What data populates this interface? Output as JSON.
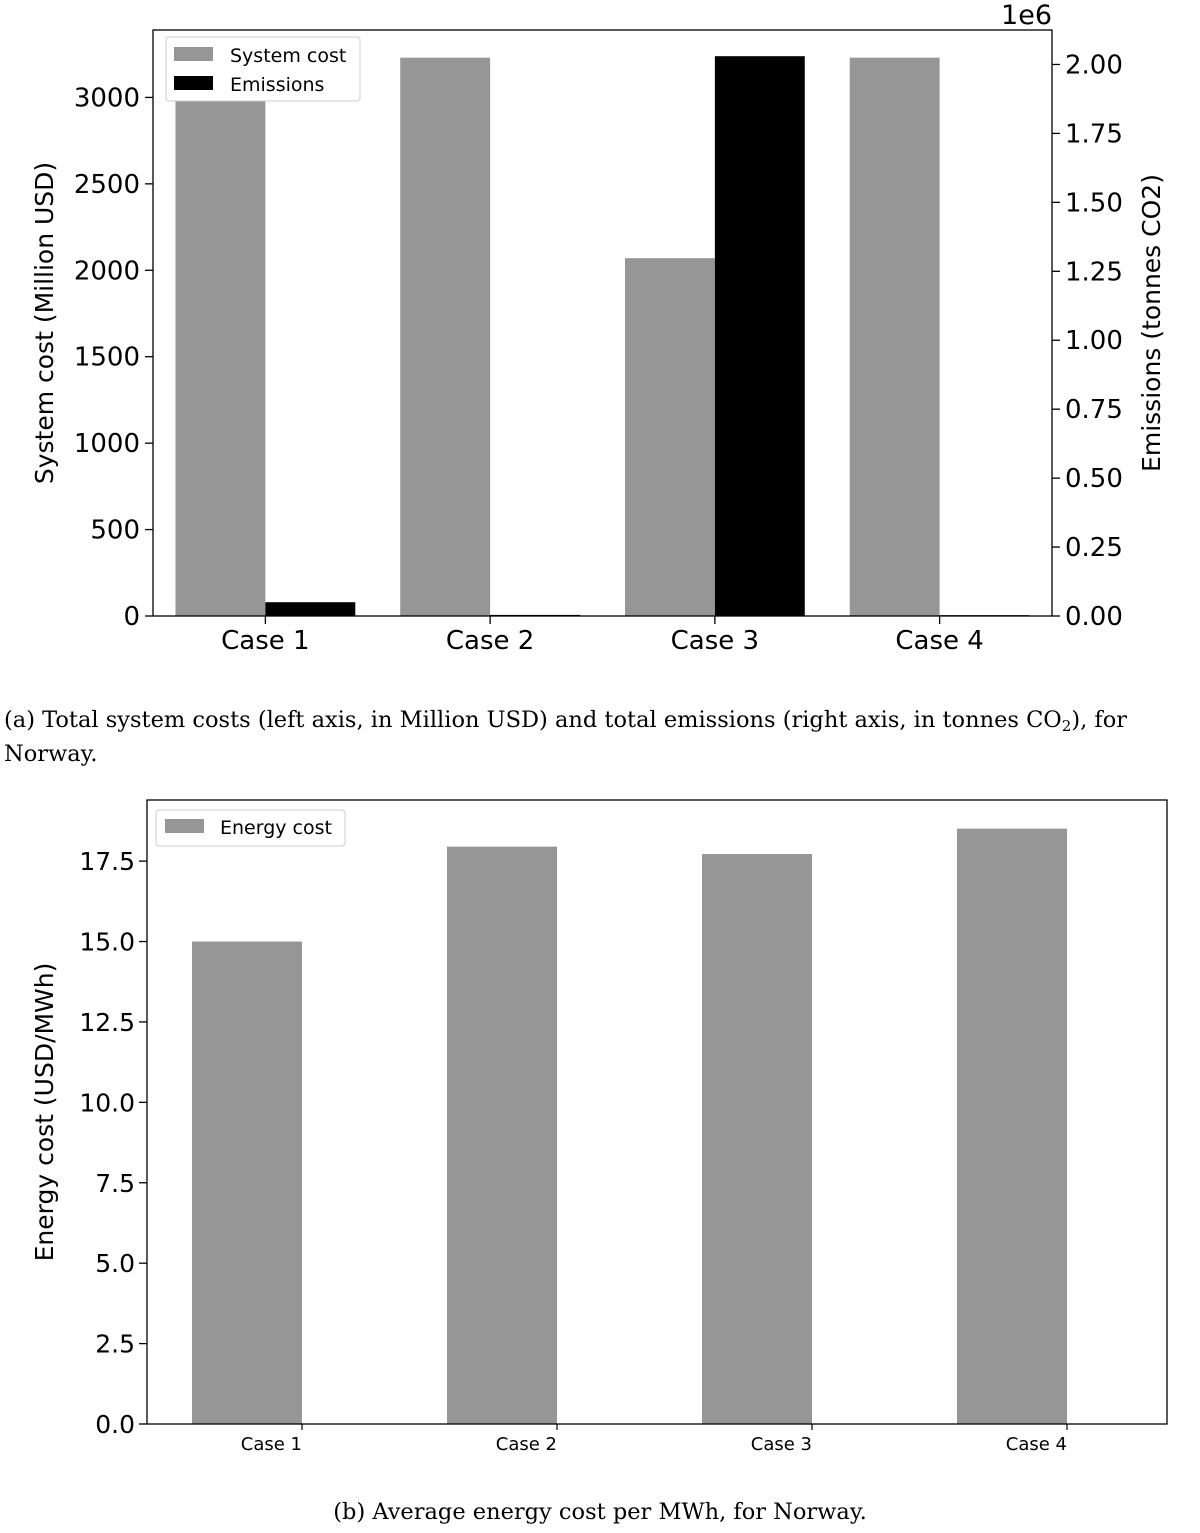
{
  "chart_data": [
    {
      "id": "a",
      "type": "bar",
      "categories": [
        "Case 1",
        "Case 2",
        "Case 3",
        "Case 4"
      ],
      "series": [
        {
          "name": "System cost",
          "axis": "left",
          "color": "#969696",
          "values": [
            3020,
            3230,
            2070,
            3230
          ]
        },
        {
          "name": "Emissions",
          "axis": "right",
          "color": "#000000",
          "values": [
            50000,
            4000,
            2030000,
            3000
          ]
        }
      ],
      "ylabel_left": "System cost (Million USD)",
      "ylabel_right": "Emissions (tonnes CO2)",
      "ylim_left": [
        0,
        3390
      ],
      "ylim_right": [
        0,
        2125000
      ],
      "yticks_left": [
        0,
        500,
        1000,
        1500,
        2000,
        2500,
        3000
      ],
      "yticks_left_labels": [
        "0",
        "500",
        "1000",
        "1500",
        "2000",
        "2500",
        "3000"
      ],
      "yticks_right": [
        0,
        250000,
        500000,
        750000,
        1000000,
        1250000,
        1500000,
        1750000,
        2000000
      ],
      "yticks_right_labels": [
        "0.00",
        "0.25",
        "0.50",
        "0.75",
        "1.00",
        "1.25",
        "1.50",
        "1.75",
        "2.00"
      ],
      "right_offset_label": "1e6",
      "legend": [
        "System cost",
        "Emissions"
      ],
      "legend_position": "top-left",
      "grid": false
    },
    {
      "id": "b",
      "type": "bar",
      "categories": [
        "Case 1",
        "Case 2",
        "Case 3",
        "Case 4"
      ],
      "series": [
        {
          "name": "Energy cost",
          "color": "#969696",
          "values": [
            15.0,
            17.95,
            17.72,
            18.51
          ]
        }
      ],
      "ylabel": "Energy cost (USD/MWh)",
      "ylim": [
        0,
        19.4
      ],
      "yticks": [
        0,
        2.5,
        5,
        7.5,
        10,
        12.5,
        15,
        17.5
      ],
      "yticks_labels": [
        "0.0",
        "2.5",
        "5.0",
        "7.5",
        "10.0",
        "12.5",
        "15.0",
        "17.5"
      ],
      "legend": [
        "Energy cost"
      ],
      "legend_position": "top-left",
      "grid": false
    }
  ],
  "captions": {
    "a_prefix": "(a) Total system costs (left axis, in Million USD) and total emissions (right axis, in tonnes CO",
    "a_sub": "2",
    "a_suffix": "), for Norway.",
    "b": "(b) Average energy cost per MWh, for Norway."
  }
}
